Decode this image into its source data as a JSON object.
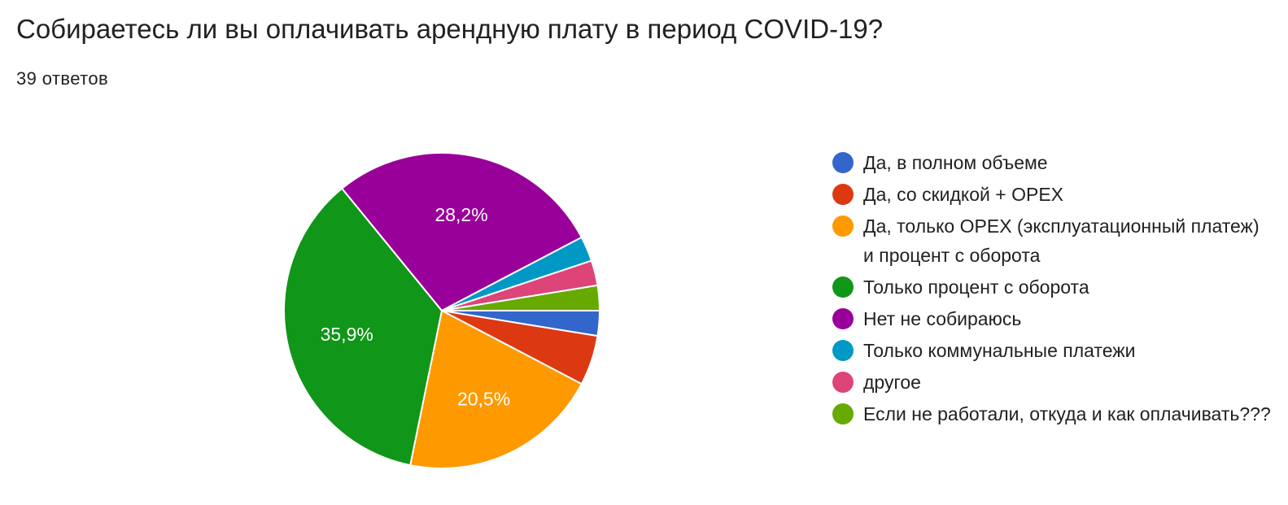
{
  "header": {
    "title": "Собираетесь ли вы оплачивать арендную плату в период COVID-19?",
    "responses": "39 ответов"
  },
  "chart_data": {
    "type": "pie",
    "total_responses": 39,
    "slices": [
      {
        "name": "Да, в полном объеме",
        "count": 1,
        "percent": 2.6,
        "color": "#3366cc",
        "label": ""
      },
      {
        "name": "Да, со скидкой + OPEX",
        "count": 2,
        "percent": 5.1,
        "color": "#dc3912",
        "label": ""
      },
      {
        "name": "Да, только OPEX (эксплуатационный платеж) и процент с оборота",
        "count": 8,
        "percent": 20.5,
        "color": "#ff9900",
        "label": "20,5%"
      },
      {
        "name": "Только процент с оборота",
        "count": 14,
        "percent": 35.9,
        "color": "#109618",
        "label": "35,9%"
      },
      {
        "name": "Нет не собираюсь",
        "count": 11,
        "percent": 28.2,
        "color": "#990099",
        "label": "28,2%"
      },
      {
        "name": "Только коммунальные платежи",
        "count": 1,
        "percent": 2.6,
        "color": "#0099c6",
        "label": ""
      },
      {
        "name": "другое",
        "count": 1,
        "percent": 2.6,
        "color": "#dd4477",
        "label": ""
      },
      {
        "name": "Если не работали, откуда и как оплачивать???",
        "count": 1,
        "percent": 2.6,
        "color": "#66aa00",
        "label": ""
      }
    ],
    "start_angle": "3 o'clock",
    "direction": "clockwise",
    "legend_position": "right"
  }
}
